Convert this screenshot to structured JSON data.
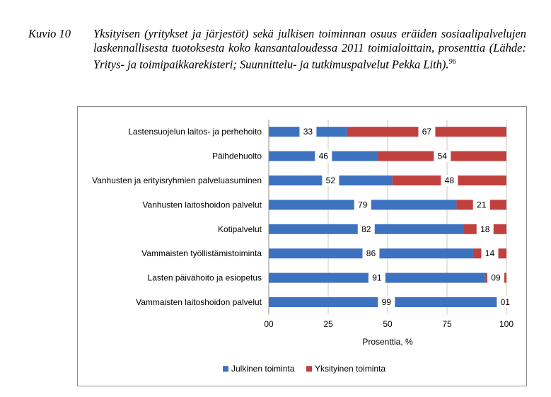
{
  "caption": {
    "label": "Kuvio 10",
    "text": "Yksityisen (yritykset ja järjestöt) sekä julkisen toiminnan osuus eräiden sosiaalipalvelujen laskennallisesta tuotoksesta koko kansantaloudessa 2011 toimialoittain, prosenttia (Lähde: Yritys- ja toimipaikkarekisteri; Suunnittelu- ja tutkimuspalvelut Pekka Lith).",
    "footnote": "96"
  },
  "chart_data": {
    "type": "bar",
    "orientation": "horizontal",
    "stacked": true,
    "categories": [
      "Lastensuojelun laitos- ja perhehoito",
      "Päihdehuolto",
      "Vanhusten ja erityisryhmien palveluasuminen",
      "Vanhusten laitoshoidon palvelut",
      "Kotipalvelut",
      "Vammaisten työllistämistoiminta",
      "Lasten päivähoito ja esiopetus",
      "Vammaisten laitoshoidon palvelut"
    ],
    "series": [
      {
        "name": "Julkinen toiminta",
        "color": "#3d72c0",
        "values": [
          33,
          46,
          52,
          79,
          82,
          86,
          91,
          99
        ],
        "labels": [
          "33",
          "46",
          "52",
          "79",
          "82",
          "86",
          "91",
          "99"
        ]
      },
      {
        "name": "Yksityinen toiminta",
        "color": "#c0403d",
        "values": [
          67,
          54,
          48,
          21,
          18,
          14,
          9,
          1
        ],
        "labels": [
          "67",
          "54",
          "48",
          "21",
          "18",
          "14",
          "09",
          "01"
        ]
      }
    ],
    "xlabel": "Prosenttia, %",
    "xticks": [
      "00",
      "25",
      "50",
      "75",
      "100"
    ],
    "xlim": [
      0,
      100
    ],
    "grid": true,
    "legend": "bottom"
  }
}
